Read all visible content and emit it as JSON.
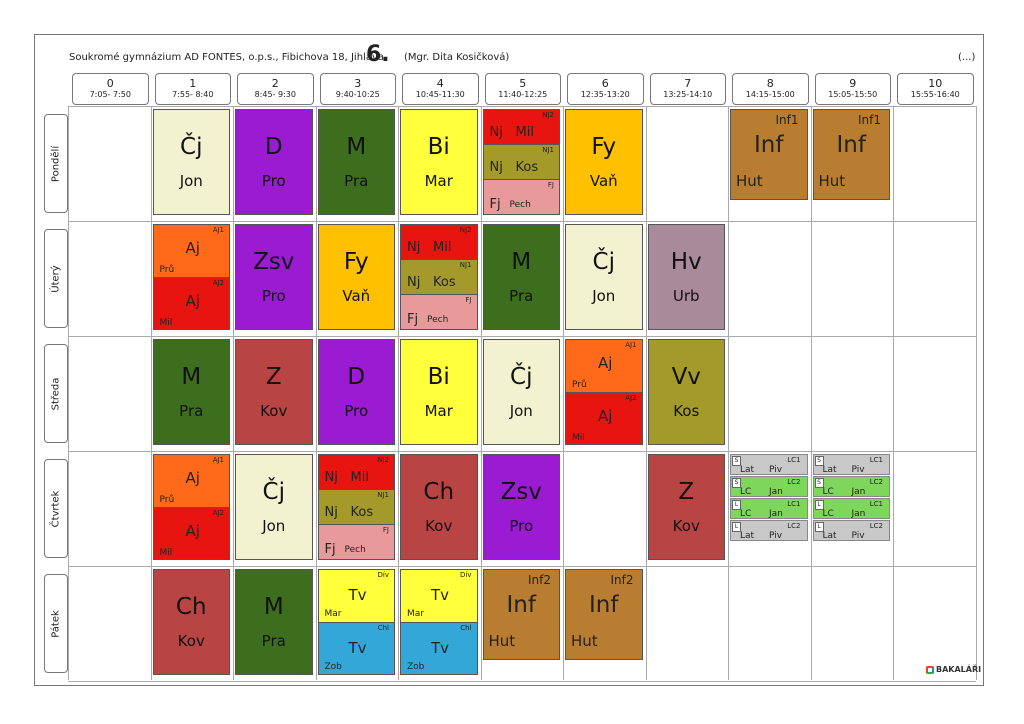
{
  "header": {
    "school": "Soukromé gymnázium AD FONTES, o.p.s., Fibichova 18, Jihlava",
    "class": "6.",
    "teacher": "(Mgr. Dita Kosičková)",
    "more": "(...)"
  },
  "periods": [
    {
      "num": "0",
      "time": "7:05- 7:50"
    },
    {
      "num": "1",
      "time": "7:55- 8:40"
    },
    {
      "num": "2",
      "time": "8:45- 9:30"
    },
    {
      "num": "3",
      "time": "9:40-10:25"
    },
    {
      "num": "4",
      "time": "10:45-11:30"
    },
    {
      "num": "5",
      "time": "11:40-12:25"
    },
    {
      "num": "6",
      "time": "12:35-13:20"
    },
    {
      "num": "7",
      "time": "13:25-14:10"
    },
    {
      "num": "8",
      "time": "14:15-15:00"
    },
    {
      "num": "9",
      "time": "15:05-15:50"
    },
    {
      "num": "10",
      "time": "15:55-16:40"
    }
  ],
  "days": [
    "Pondělí",
    "Úterý",
    "Středa",
    "Čtvrtek",
    "Pátek"
  ],
  "colors": {
    "cj": "#f2f2d0",
    "d": "#9b1bd2",
    "m": "#3d6e1e",
    "bi": "#ffff3c",
    "fy": "#ffc000",
    "inf": "#b87d30",
    "red": "#e8140f",
    "olive": "#a39a2a",
    "pink": "#e89a9a",
    "aj1": "#ff6a1a",
    "zsv": "#9b1bd2",
    "hv": "#a98a9a",
    "vv": "#a39a2a",
    "z": "#b84444",
    "ch": "#b84444",
    "tv1": "#ffff3c",
    "tv2": "#33a8d8",
    "lcgray": "#c8c8c8",
    "lcgreen": "#7ed65a"
  },
  "lessons": [
    {
      "day": 0,
      "col": 1,
      "type": "simple",
      "subject": "Čj",
      "teacher": "Jon",
      "color": "cj"
    },
    {
      "day": 0,
      "col": 2,
      "type": "simple",
      "subject": "D",
      "teacher": "Pro",
      "color": "d"
    },
    {
      "day": 0,
      "col": 3,
      "type": "simple",
      "subject": "M",
      "teacher": "Pra",
      "color": "m"
    },
    {
      "day": 0,
      "col": 4,
      "type": "simple",
      "subject": "Bi",
      "teacher": "Mar",
      "color": "bi"
    },
    {
      "day": 0,
      "col": 5,
      "type": "nj"
    },
    {
      "day": 0,
      "col": 6,
      "type": "simple",
      "subject": "Fy",
      "teacher": "Vaň",
      "color": "fy"
    },
    {
      "day": 0,
      "col": 8,
      "type": "inf",
      "subject": "Inf",
      "teacher": "Hut",
      "group": "Inf1"
    },
    {
      "day": 0,
      "col": 9,
      "type": "inf",
      "subject": "Inf",
      "teacher": "Hut",
      "group": "Inf1"
    },
    {
      "day": 1,
      "col": 1,
      "type": "aj"
    },
    {
      "day": 1,
      "col": 2,
      "type": "simple",
      "subject": "Zsv",
      "teacher": "Pro",
      "color": "zsv"
    },
    {
      "day": 1,
      "col": 3,
      "type": "simple",
      "subject": "Fy",
      "teacher": "Vaň",
      "color": "fy"
    },
    {
      "day": 1,
      "col": 4,
      "type": "nj"
    },
    {
      "day": 1,
      "col": 5,
      "type": "simple",
      "subject": "M",
      "teacher": "Pra",
      "color": "m"
    },
    {
      "day": 1,
      "col": 6,
      "type": "simple",
      "subject": "Čj",
      "teacher": "Jon",
      "color": "cj"
    },
    {
      "day": 1,
      "col": 7,
      "type": "simple",
      "subject": "Hv",
      "teacher": "Urb",
      "color": "hv"
    },
    {
      "day": 2,
      "col": 1,
      "type": "simple",
      "subject": "M",
      "teacher": "Pra",
      "color": "m"
    },
    {
      "day": 2,
      "col": 2,
      "type": "simple",
      "subject": "Z",
      "teacher": "Kov",
      "color": "z"
    },
    {
      "day": 2,
      "col": 3,
      "type": "simple",
      "subject": "D",
      "teacher": "Pro",
      "color": "d"
    },
    {
      "day": 2,
      "col": 4,
      "type": "simple",
      "subject": "Bi",
      "teacher": "Mar",
      "color": "bi"
    },
    {
      "day": 2,
      "col": 5,
      "type": "simple",
      "subject": "Čj",
      "teacher": "Jon",
      "color": "cj"
    },
    {
      "day": 2,
      "col": 6,
      "type": "aj"
    },
    {
      "day": 2,
      "col": 7,
      "type": "simple",
      "subject": "Vv",
      "teacher": "Kos",
      "color": "vv"
    },
    {
      "day": 3,
      "col": 1,
      "type": "aj"
    },
    {
      "day": 3,
      "col": 2,
      "type": "simple",
      "subject": "Čj",
      "teacher": "Jon",
      "color": "cj"
    },
    {
      "day": 3,
      "col": 3,
      "type": "nj"
    },
    {
      "day": 3,
      "col": 4,
      "type": "simple",
      "subject": "Ch",
      "teacher": "Kov",
      "color": "ch"
    },
    {
      "day": 3,
      "col": 5,
      "type": "simple",
      "subject": "Zsv",
      "teacher": "Pro",
      "color": "zsv"
    },
    {
      "day": 3,
      "col": 7,
      "type": "simple",
      "subject": "Z",
      "teacher": "Kov",
      "color": "z"
    },
    {
      "day": 3,
      "col": 8,
      "type": "lc"
    },
    {
      "day": 3,
      "col": 9,
      "type": "lc"
    },
    {
      "day": 4,
      "col": 1,
      "type": "simple",
      "subject": "Ch",
      "teacher": "Kov",
      "color": "ch"
    },
    {
      "day": 4,
      "col": 2,
      "type": "simple",
      "subject": "M",
      "teacher": "Pra",
      "color": "m"
    },
    {
      "day": 4,
      "col": 3,
      "type": "tv"
    },
    {
      "day": 4,
      "col": 4,
      "type": "tv"
    },
    {
      "day": 4,
      "col": 5,
      "type": "inf",
      "subject": "Inf",
      "teacher": "Hut",
      "group": "Inf2"
    },
    {
      "day": 4,
      "col": 6,
      "type": "inf",
      "subject": "Inf",
      "teacher": "Hut",
      "group": "Inf2"
    }
  ],
  "nj_parts": [
    {
      "subject": "Nj",
      "teacher": "Mil",
      "group": "NJ2",
      "color": "red"
    },
    {
      "subject": "Nj",
      "teacher": "Kos",
      "group": "NJ1",
      "color": "olive"
    },
    {
      "subject": "Fj",
      "teacher": "Pech",
      "group": "FJ",
      "color": "pink"
    }
  ],
  "aj_parts": [
    {
      "subject": "Aj",
      "teacher": "Prů",
      "group": "AJ1",
      "color": "aj1"
    },
    {
      "subject": "Aj",
      "teacher": "Mil",
      "group": "AJ2",
      "color": "red"
    }
  ],
  "tv_parts": [
    {
      "subject": "Tv",
      "teacher": "Mar",
      "group": "Dív",
      "color": "tv1"
    },
    {
      "subject": "Tv",
      "teacher": "Zob",
      "group": "Chl",
      "color": "tv2"
    }
  ],
  "lc_parts": [
    {
      "box": "S",
      "subject": "Lat",
      "teacher": "Piv",
      "group": "LC1",
      "color": "lcgray"
    },
    {
      "box": "S",
      "subject": "LC",
      "teacher": "Jan",
      "group": "LC2",
      "color": "lcgreen"
    },
    {
      "box": "L",
      "subject": "LC",
      "teacher": "Jan",
      "group": "LC1",
      "color": "lcgreen"
    },
    {
      "box": "L",
      "subject": "Lat",
      "teacher": "Piv",
      "group": "LC2",
      "color": "lcgray"
    }
  ],
  "logo": "BAKALÁŘI"
}
